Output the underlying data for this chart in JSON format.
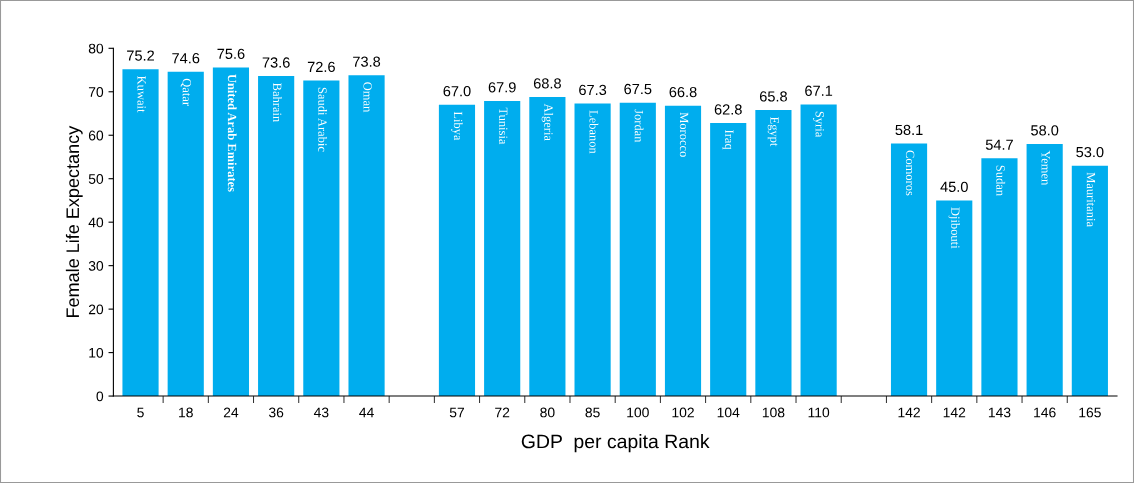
{
  "chart_data": {
    "type": "bar",
    "xlabel": "GDP  per capita Rank",
    "ylabel": "Female Life Expectancy",
    "categories": [
      "5",
      "18",
      "24",
      "36",
      "43",
      "44",
      null,
      "57",
      "72",
      "80",
      "85",
      "100",
      "102",
      "104",
      "108",
      "110",
      null,
      "142",
      "142",
      "143",
      "146",
      "165"
    ],
    "values": [
      75.2,
      74.6,
      75.6,
      73.6,
      72.6,
      73.8,
      null,
      67.0,
      67.9,
      68.8,
      67.3,
      67.5,
      66.8,
      62.8,
      65.8,
      67.1,
      null,
      58.1,
      45.0,
      54.7,
      58.0,
      53.0
    ],
    "value_labels": [
      "75.2",
      "74.6",
      "75.6",
      "73.6",
      "72.6",
      "73.8",
      null,
      "67.0",
      "67.9",
      "68.8",
      "67.3",
      "67.5",
      "66.8",
      "62.8",
      "65.8",
      "67.1",
      null,
      "58.1",
      "45.0",
      "54.7",
      "58.0",
      "53.0"
    ],
    "annotations": [
      "Kuwait",
      "Qatar",
      "United Arab Emirates",
      "Bahrain",
      "Saudi Arabic",
      "Oman",
      "Libya",
      "Tunisia",
      "Algeria",
      "Lebanon",
      "Jordan",
      "Morocco",
      "Iraq",
      "Egypt",
      "Syria",
      "Comoros",
      "Djibouti",
      "Sudan",
      "Yemen",
      "Mauritania"
    ],
    "color": "#00adee",
    "ylim": [
      0,
      80
    ],
    "yticks": [
      0,
      10,
      20,
      30,
      40,
      50,
      60,
      70,
      80
    ],
    "grid": false,
    "legend": false
  }
}
